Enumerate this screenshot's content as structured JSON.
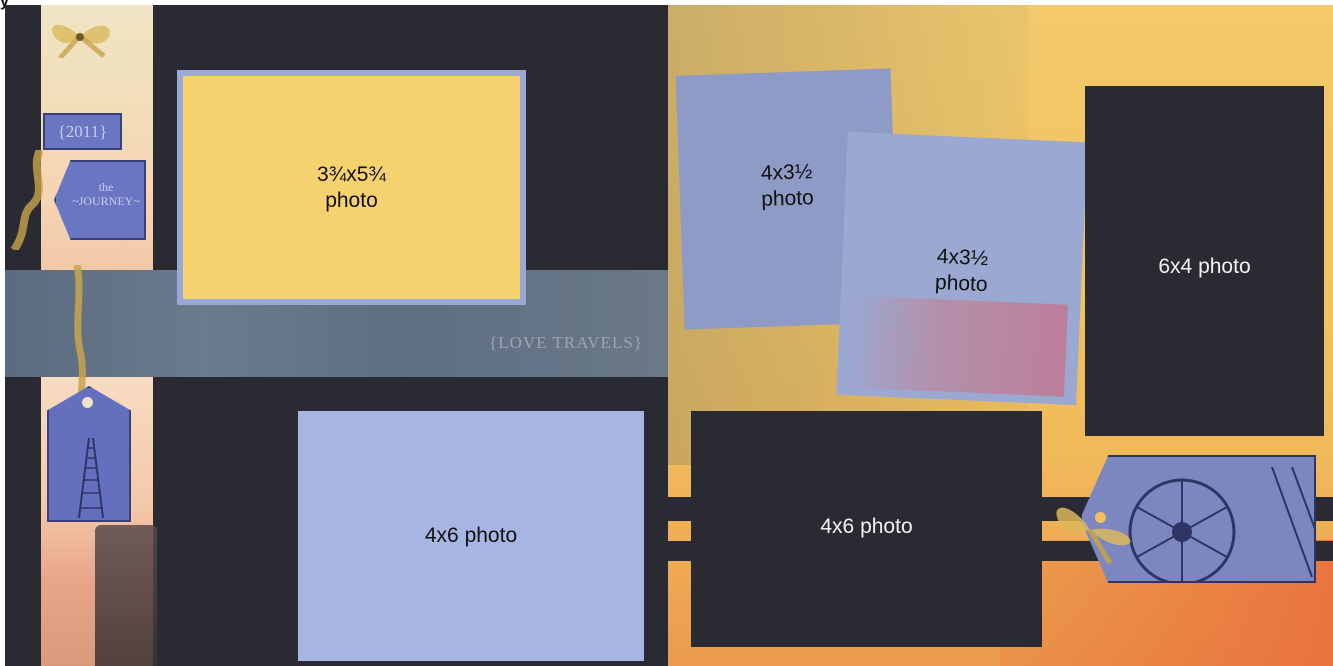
{
  "page_label": "y",
  "left_page": {
    "tags": {
      "year": "{2011}",
      "journey_small": "the",
      "journey_big": "~JOURNEY~"
    },
    "stamp_love_travels": "{LOVE TRAVELS}",
    "photos": [
      {
        "id": "yellow",
        "label": "3¾x5¾",
        "label2": "photo"
      },
      {
        "id": "blue",
        "label": "4x6 photo"
      }
    ]
  },
  "right_page": {
    "photos": [
      {
        "id": "tilted-a",
        "label": "4x3½",
        "label2": "photo"
      },
      {
        "id": "tilted-b",
        "label": "4x3½",
        "label2": "photo"
      },
      {
        "id": "tall-dark",
        "label": "6x4 photo"
      },
      {
        "id": "wide-dark",
        "label": "4x6 photo"
      }
    ]
  },
  "colors": {
    "cardstock_dark": "#2a2a33",
    "mat_yellow": "#f6d16f",
    "mat_blue": "#a7b5e3",
    "band_blue_gray": "#5f6f82",
    "tag_blue": "#6a76c2",
    "background_gold": "#f1c35f"
  },
  "icons": [
    "ribbon-bow",
    "tag",
    "train-track",
    "train-wheel"
  ]
}
